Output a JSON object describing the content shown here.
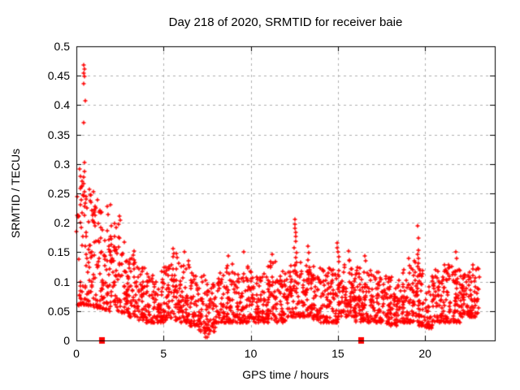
{
  "chart_data": {
    "type": "scatter",
    "title": "Day 218 of 2020, SRMTID for receiver baie",
    "xlabel": "GPS time / hours",
    "ylabel": "SRMTID / TECUs",
    "xlim": [
      0,
      24
    ],
    "ylim": [
      0,
      0.5
    ],
    "xticks": {
      "values": [
        0,
        5,
        10,
        15,
        20
      ],
      "labels": [
        "0",
        "5",
        "10",
        "15",
        "20"
      ]
    },
    "yticks": {
      "values": [
        0,
        0.05,
        0.1,
        0.15,
        0.2,
        0.25,
        0.3,
        0.35,
        0.4,
        0.45,
        0.5
      ],
      "labels": [
        "0",
        "0.05",
        "0.1",
        "0.15",
        "0.2",
        "0.25",
        "0.3",
        "0.35",
        "0.4",
        "0.45",
        "0.5"
      ]
    },
    "grid": true,
    "legend": "none",
    "marker": "plus",
    "colors": {
      "marker": "#ff0000",
      "square": "#ff0000",
      "grid": "#b0b0b0",
      "axis": "#000000",
      "text": "#000000",
      "background": "#ffffff"
    },
    "square_markers": [
      [
        1.45,
        0
      ],
      [
        16.33,
        0
      ]
    ],
    "featured_points": [
      [
        0.43,
        0.468
      ],
      [
        0.47,
        0.461
      ],
      [
        0.44,
        0.455
      ],
      [
        0.46,
        0.449
      ],
      [
        0.43,
        0.436
      ],
      [
        0.51,
        0.407
      ],
      [
        0.44,
        0.37
      ],
      [
        0.47,
        0.302
      ],
      [
        0.33,
        0.262
      ],
      [
        0.74,
        0.257
      ],
      [
        0.55,
        0.24
      ],
      [
        0.4,
        0.246
      ],
      [
        0.6,
        0.225
      ],
      [
        0.85,
        0.235
      ],
      [
        1.1,
        0.225
      ],
      [
        1.3,
        0.218
      ],
      [
        1.75,
        0.228
      ],
      [
        1.94,
        0.231
      ],
      [
        2.45,
        0.212
      ],
      [
        2.53,
        0.205
      ],
      [
        3.32,
        0.152
      ],
      [
        5.55,
        0.156
      ],
      [
        5.6,
        0.148
      ],
      [
        6.18,
        0.15
      ],
      [
        8.7,
        0.143
      ],
      [
        9.62,
        0.15
      ],
      [
        11.22,
        0.147
      ],
      [
        12.52,
        0.206
      ],
      [
        12.54,
        0.198
      ],
      [
        12.55,
        0.191
      ],
      [
        12.57,
        0.184
      ],
      [
        12.56,
        0.177
      ],
      [
        12.6,
        0.169
      ],
      [
        12.5,
        0.157
      ],
      [
        12.62,
        0.149
      ],
      [
        12.58,
        0.141
      ],
      [
        12.65,
        0.133
      ],
      [
        13.28,
        0.16
      ],
      [
        13.32,
        0.149
      ],
      [
        13.3,
        0.137
      ],
      [
        14.95,
        0.166
      ],
      [
        14.98,
        0.158
      ],
      [
        15.0,
        0.15
      ],
      [
        15.03,
        0.142
      ],
      [
        15.05,
        0.134
      ],
      [
        15.62,
        0.152
      ],
      [
        16.55,
        0.143
      ],
      [
        16.6,
        0.136
      ],
      [
        19.58,
        0.195
      ],
      [
        19.6,
        0.174
      ],
      [
        19.62,
        0.153
      ],
      [
        19.59,
        0.147
      ],
      [
        19.63,
        0.139
      ],
      [
        19.61,
        0.131
      ],
      [
        19.56,
        0.126
      ],
      [
        19.65,
        0.122
      ],
      [
        21.78,
        0.15
      ],
      [
        21.82,
        0.139
      ],
      [
        7.42,
        0.005
      ],
      [
        7.5,
        0.005
      ],
      [
        7.35,
        0.013
      ],
      [
        7.58,
        0.011
      ]
    ],
    "cloud_bins": [
      [
        0.0,
        0.5,
        48,
        0.06,
        0.3
      ],
      [
        0.5,
        1.0,
        52,
        0.06,
        0.26
      ],
      [
        1.0,
        1.5,
        52,
        0.055,
        0.24
      ],
      [
        1.5,
        2.0,
        50,
        0.05,
        0.22
      ],
      [
        2.0,
        2.5,
        48,
        0.05,
        0.2
      ],
      [
        2.5,
        3.0,
        46,
        0.045,
        0.17
      ],
      [
        3.0,
        3.5,
        46,
        0.04,
        0.145
      ],
      [
        3.5,
        4.0,
        46,
        0.035,
        0.125
      ],
      [
        4.0,
        4.5,
        46,
        0.03,
        0.115
      ],
      [
        4.5,
        5.0,
        46,
        0.03,
        0.12
      ],
      [
        5.0,
        5.5,
        46,
        0.035,
        0.13
      ],
      [
        5.5,
        6.0,
        46,
        0.035,
        0.15
      ],
      [
        6.0,
        6.5,
        46,
        0.03,
        0.14
      ],
      [
        6.5,
        7.0,
        46,
        0.025,
        0.12
      ],
      [
        7.0,
        7.5,
        44,
        0.015,
        0.11
      ],
      [
        7.5,
        8.0,
        44,
        0.015,
        0.1
      ],
      [
        8.0,
        8.5,
        46,
        0.03,
        0.12
      ],
      [
        8.5,
        9.0,
        46,
        0.03,
        0.13
      ],
      [
        9.0,
        9.5,
        46,
        0.03,
        0.12
      ],
      [
        9.5,
        10.0,
        46,
        0.03,
        0.13
      ],
      [
        10.0,
        10.5,
        46,
        0.03,
        0.12
      ],
      [
        10.5,
        11.0,
        46,
        0.03,
        0.12
      ],
      [
        11.0,
        11.5,
        46,
        0.035,
        0.135
      ],
      [
        11.5,
        12.0,
        46,
        0.03,
        0.12
      ],
      [
        12.0,
        12.5,
        46,
        0.04,
        0.13
      ],
      [
        12.5,
        13.0,
        46,
        0.04,
        0.135
      ],
      [
        13.0,
        13.5,
        46,
        0.04,
        0.13
      ],
      [
        13.5,
        14.0,
        46,
        0.035,
        0.13
      ],
      [
        14.0,
        14.5,
        46,
        0.03,
        0.12
      ],
      [
        14.5,
        15.0,
        46,
        0.03,
        0.13
      ],
      [
        15.0,
        15.5,
        46,
        0.04,
        0.135
      ],
      [
        15.5,
        16.0,
        46,
        0.04,
        0.14
      ],
      [
        16.0,
        16.5,
        46,
        0.03,
        0.13
      ],
      [
        16.5,
        17.0,
        46,
        0.03,
        0.12
      ],
      [
        17.0,
        17.5,
        46,
        0.03,
        0.12
      ],
      [
        17.5,
        18.0,
        46,
        0.028,
        0.11
      ],
      [
        18.0,
        18.5,
        46,
        0.025,
        0.11
      ],
      [
        18.5,
        19.0,
        46,
        0.03,
        0.12
      ],
      [
        19.0,
        19.5,
        46,
        0.03,
        0.14
      ],
      [
        19.5,
        20.0,
        46,
        0.025,
        0.12
      ],
      [
        20.0,
        20.5,
        46,
        0.02,
        0.11
      ],
      [
        20.5,
        21.0,
        46,
        0.03,
        0.12
      ],
      [
        21.0,
        21.5,
        46,
        0.03,
        0.13
      ],
      [
        21.5,
        22.0,
        46,
        0.03,
        0.13
      ],
      [
        22.0,
        22.5,
        48,
        0.04,
        0.125
      ],
      [
        22.5,
        23.1,
        56,
        0.04,
        0.13
      ]
    ]
  }
}
